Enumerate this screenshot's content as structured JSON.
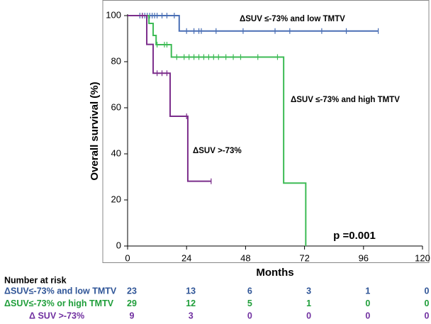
{
  "chart_data": {
    "type": "survival",
    "ylabel": "Overall survival (%)",
    "xlabel": "Months",
    "xlim": [
      0,
      120
    ],
    "xticks": [
      0,
      24,
      48,
      72,
      96,
      120
    ],
    "ylim": [
      0,
      100
    ],
    "yticks": [
      0,
      20,
      40,
      60,
      80,
      100
    ],
    "series": [
      {
        "name": "ΔSUV ≤-73% and low TMTV",
        "color": "#4a6fb5",
        "x": [
          0,
          21,
          102
        ],
        "values": [
          100,
          93.3,
          93.3
        ],
        "censored": [
          5,
          6,
          7,
          8,
          9,
          10,
          11,
          12,
          14,
          16,
          19,
          24,
          27,
          29,
          30,
          36,
          47,
          60,
          66,
          79,
          89,
          102
        ]
      },
      {
        "name": "ΔSUV ≤-73% and high TMTV",
        "color": "#3dbb55",
        "x": [
          0,
          8.7,
          10.4,
          11.6,
          17.8,
          63.5,
          72.5
        ],
        "values": [
          100,
          96.6,
          91.4,
          87.4,
          82,
          27.3,
          0
        ],
        "censored": [
          12,
          15,
          16,
          20,
          23,
          25,
          27,
          29,
          31,
          33,
          35,
          37,
          40,
          43,
          46,
          53,
          61
        ]
      },
      {
        "name": "ΔSUV >-73%",
        "color": "#7b2d8b",
        "x": [
          0,
          7.8,
          10.4,
          17.3,
          24.5,
          34
        ],
        "values": [
          100,
          87.5,
          75,
          56.3,
          28.1,
          28.1
        ],
        "censored": [
          6,
          12,
          14,
          16,
          24,
          34
        ]
      }
    ],
    "annotation": "p =0.001",
    "risk_table": {
      "title": "Number at risk",
      "rows": [
        {
          "label": "ΔSUV≤-73% and low TMTV",
          "color": "#2f5597",
          "values": [
            23,
            13,
            6,
            3,
            1,
            0
          ]
        },
        {
          "label": "ΔSUV≤-73% or high  TMTV",
          "color": "#1f9e3a",
          "values": [
            29,
            12,
            5,
            1,
            0,
            0
          ]
        },
        {
          "label": "Δ SUV >-73%",
          "color": "#7030a0",
          "values": [
            9,
            3,
            0,
            0,
            0,
            0
          ]
        }
      ]
    }
  }
}
